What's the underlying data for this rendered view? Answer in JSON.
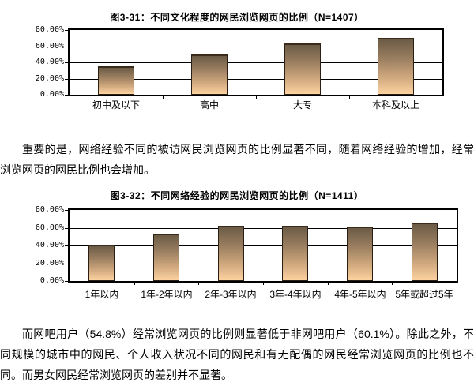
{
  "page": {
    "background": "#ffffff",
    "text_color": "#000000"
  },
  "paragraphs": {
    "between_charts": "重要的是，网络经验不同的被访网民浏览网页的比例显著不同，随着网络经验的增加，经常浏览网页的网民比例也会增加。",
    "bottom": "而网吧用户（54.8%）经常浏览网页的比例则显著低于非网吧用户（60.1%）。除此之外，不同规模的城市中的网民、个人收入状况不同的网民和有无配偶的网民经常浏览网页的比例也不同。而男女网民经常浏览网页的差别并不显著。"
  },
  "chart_data": [
    {
      "type": "bar",
      "title": "图3-31：不同文化程度的网民浏览网页的比例（N=1407）",
      "categories": [
        "初中及以下",
        "高中",
        "大专",
        "本科及以上"
      ],
      "values": [
        35,
        50,
        63,
        70
      ],
      "unit": "%",
      "ylabel": "",
      "xlabel": "",
      "ylim": [
        0,
        80
      ],
      "ytick_step": 20,
      "ytick_labels": [
        "80.00%",
        "60.00%",
        "40.00%",
        "20.00%",
        "0.00%"
      ],
      "grid": true,
      "legend": "none",
      "bar_gradient": [
        "#6b5b46",
        "#9a7e60",
        "#cda67c",
        "#fdd2a0"
      ]
    },
    {
      "type": "bar",
      "title": "图3-32：不同网络经验的网民浏览网页的比例（N=1411）",
      "categories": [
        "1年以内",
        "1年-2年以内",
        "2年-3年以内",
        "3年-4年以内",
        "4年-5年以内",
        "5年或超过5年"
      ],
      "values": [
        41,
        53,
        62,
        62,
        61,
        66
      ],
      "unit": "%",
      "ylabel": "",
      "xlabel": "",
      "ylim": [
        0,
        80
      ],
      "ytick_step": 20,
      "ytick_labels": [
        "80.00%",
        "60.00%",
        "40.00%",
        "20.00%",
        "0.00%"
      ],
      "grid": true,
      "legend": "none",
      "bar_gradient": [
        "#6b5b46",
        "#9a7e60",
        "#cda67c",
        "#fdd2a0"
      ]
    }
  ]
}
